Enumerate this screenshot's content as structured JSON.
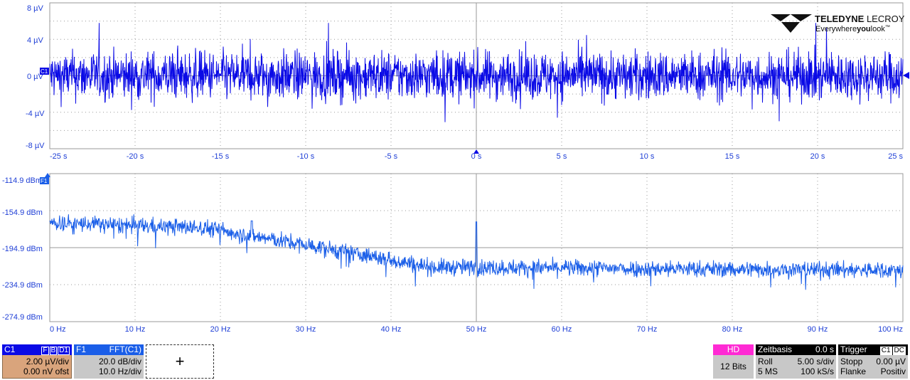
{
  "logo": {
    "brand_bold": "TELEDYNE",
    "brand_light": " LECROY",
    "tagline_a": "Everywhere",
    "tagline_b": "you",
    "tagline_c": "look",
    "tm": "™"
  },
  "time_trace": {
    "channel_tag": "C1",
    "y_ticks": [
      "8 µV",
      "4 µV",
      "0 µV",
      "-4 µV",
      "-8 µV"
    ],
    "x_ticks": [
      "-25 s",
      "-20 s",
      "-15 s",
      "-10 s",
      "-5 s",
      "0 s",
      "5 s",
      "10 s",
      "15 s",
      "20 s",
      "25 s"
    ],
    "color": "#0a0ae6"
  },
  "fft_trace": {
    "channel_tag": "F1",
    "y_ticks": [
      "-114.9 dBm",
      "-154.9 dBm",
      "-194.9 dBm",
      "-234.9 dBm",
      "-274.9 dBm"
    ],
    "x_ticks": [
      "0 Hz",
      "10 Hz",
      "20 Hz",
      "30 Hz",
      "40 Hz",
      "50 Hz",
      "60 Hz",
      "70 Hz",
      "80 Hz",
      "90 Hz",
      "100 Hz"
    ],
    "color": "#1a5ee8"
  },
  "c1_panel": {
    "name": "C1",
    "flags": [
      "F",
      "B",
      "D1"
    ],
    "scale": "2.00 µV/div",
    "offset": "0.00 nV ofst"
  },
  "f1_panel": {
    "name": "F1",
    "func": "FFT(C1)",
    "scale": "20.0 dB/div",
    "hdiv": "10.0 Hz/div"
  },
  "add_panel": {
    "symbol": "+"
  },
  "hd_panel": {
    "label": "HD",
    "bits": "12 Bits"
  },
  "timebase_panel": {
    "label": "Zeitbasis",
    "delay": "0.0 s",
    "mode": "Roll",
    "tdiv": "5.00 s/div",
    "samples": "5 MS",
    "rate": "100 kS/s"
  },
  "trigger_panel": {
    "label": "Trigger",
    "src": "C1",
    "coupling": "DC",
    "state": "Stopp",
    "level": "0.00 µV",
    "type": "Flanke",
    "slope": "Positiv"
  }
}
